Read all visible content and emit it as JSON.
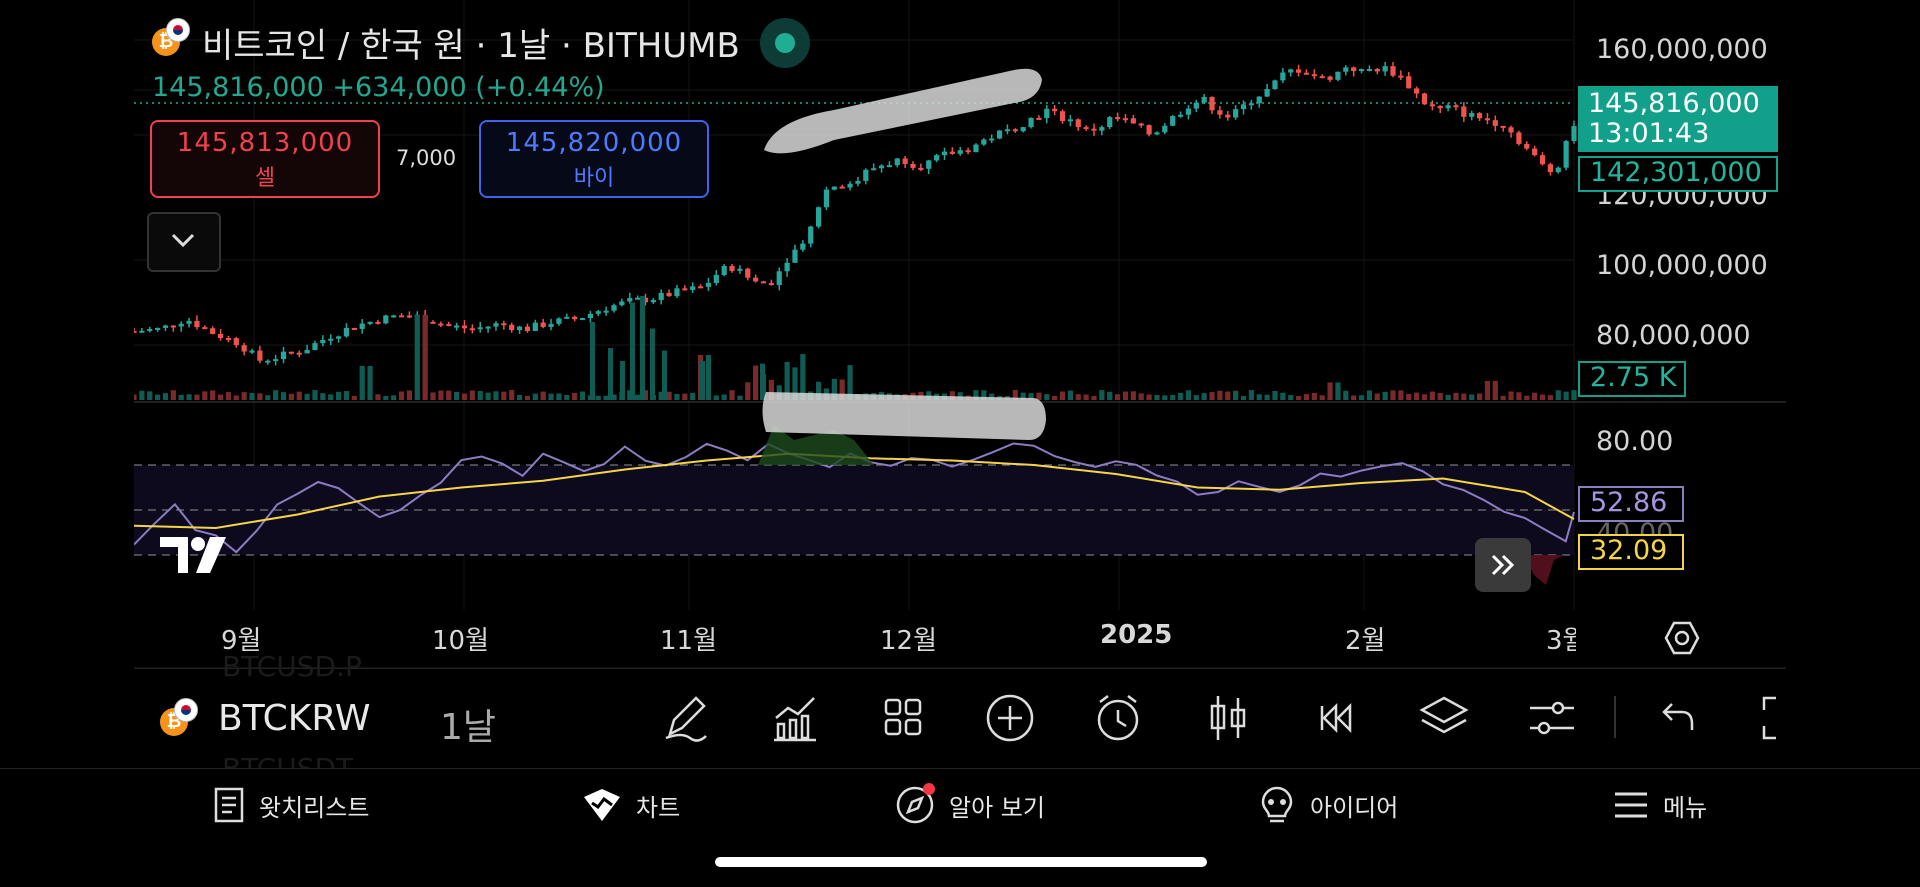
{
  "header": {
    "title": "비트코인 / 한국 원 · 1날 · BITHUMB",
    "price_line": "145,816,000 +634,000 (+0.44%)",
    "coin_icon_symbol": "₿"
  },
  "trade": {
    "sell_price": "145,813,000",
    "sell_label": "셀",
    "buy_price": "145,820,000",
    "buy_label": "바이",
    "spread": "7,000"
  },
  "price_axis": [
    "160,000,000",
    "120,000,000",
    "100,000,000",
    "80,000,000"
  ],
  "price_tags": {
    "last_price": "145,816,000",
    "countdown": "13:01:43",
    "secondary": "142,301,000",
    "volume": "2.75 K"
  },
  "rsi": {
    "axis_top": "80.00",
    "axis_mid": "40.00",
    "value": "52.86",
    "ma_value": "32.09"
  },
  "time_axis": [
    "9월",
    "10월",
    "11월",
    "12월",
    "2025",
    "2월",
    "3월"
  ],
  "toolbar": {
    "symbol": "BTCKRW",
    "interval": "1날",
    "tools": [
      "pencil-icon",
      "indicators-icon",
      "layouts-icon",
      "add-icon",
      "alarm-icon",
      "candle-icon",
      "replay-icon",
      "layers-icon",
      "settings-sliders-icon",
      "undo-icon"
    ]
  },
  "ghost": {
    "line1": "BTCUSD.P",
    "line2": "BTCUSDT"
  },
  "nav": [
    {
      "label": "왓치리스트",
      "icon": "watchlist-icon"
    },
    {
      "label": "차트",
      "icon": "chart-icon"
    },
    {
      "label": "알아 보기",
      "icon": "explore-icon"
    },
    {
      "label": "아이디어",
      "icon": "ideas-icon"
    },
    {
      "label": "메뉴",
      "icon": "menu-icon"
    }
  ],
  "colors": {
    "up": "#26a69a",
    "down": "#ef5350",
    "rsi": "#8e7cc3",
    "rsi_ma": "#f5d547",
    "accent": "#1fae94"
  },
  "chart_data": {
    "type": "candlestick",
    "title": "비트코인 / 한국 원 · 1날 · BITHUMB",
    "price_range": [
      62000000,
      170000000
    ],
    "close_path": [
      [
        0,
        82.5
      ],
      [
        10,
        83
      ],
      [
        20,
        86
      ],
      [
        30,
        82
      ],
      [
        40,
        79
      ],
      [
        48,
        74
      ],
      [
        55,
        75
      ],
      [
        65,
        77
      ],
      [
        75,
        81
      ],
      [
        85,
        84
      ],
      [
        95,
        86
      ],
      [
        102,
        87
      ],
      [
        110,
        86.5
      ],
      [
        120,
        84
      ],
      [
        130,
        83
      ],
      [
        140,
        84.5
      ],
      [
        150,
        83
      ],
      [
        160,
        85
      ],
      [
        170,
        86
      ],
      [
        180,
        89
      ],
      [
        190,
        91
      ],
      [
        200,
        92
      ],
      [
        210,
        94
      ],
      [
        218,
        95
      ],
      [
        225,
        100
      ],
      [
        230,
        101
      ],
      [
        235,
        98
      ],
      [
        240,
        96
      ],
      [
        245,
        97
      ],
      [
        250,
        103
      ],
      [
        255,
        107
      ],
      [
        260,
        113
      ],
      [
        262,
        118
      ],
      [
        265,
        123
      ],
      [
        270,
        125
      ],
      [
        275,
        124
      ],
      [
        280,
        128
      ],
      [
        285,
        130
      ],
      [
        290,
        131
      ],
      [
        295,
        132
      ],
      [
        300,
        130
      ],
      [
        305,
        131
      ],
      [
        310,
        133
      ],
      [
        315,
        134
      ],
      [
        320,
        135
      ],
      [
        325,
        137
      ],
      [
        330,
        139
      ],
      [
        335,
        140
      ],
      [
        340,
        142
      ],
      [
        345,
        144
      ],
      [
        350,
        146
      ],
      [
        355,
        144
      ],
      [
        360,
        143
      ],
      [
        365,
        140
      ],
      [
        370,
        141
      ],
      [
        375,
        144
      ],
      [
        380,
        143
      ],
      [
        385,
        141
      ],
      [
        390,
        139
      ],
      [
        395,
        142
      ],
      [
        400,
        145
      ],
      [
        405,
        148
      ],
      [
        410,
        149
      ],
      [
        415,
        146
      ],
      [
        420,
        144
      ],
      [
        425,
        147
      ],
      [
        430,
        150
      ],
      [
        435,
        152
      ],
      [
        440,
        156
      ],
      [
        445,
        158
      ],
      [
        450,
        157
      ],
      [
        455,
        155
      ],
      [
        460,
        156
      ],
      [
        465,
        159
      ],
      [
        470,
        157
      ],
      [
        475,
        158
      ],
      [
        480,
        158
      ],
      [
        485,
        156
      ],
      [
        490,
        152
      ],
      [
        495,
        148
      ],
      [
        500,
        146
      ],
      [
        505,
        147
      ],
      [
        510,
        145
      ],
      [
        515,
        144
      ],
      [
        520,
        143
      ],
      [
        525,
        142
      ],
      [
        530,
        138
      ],
      [
        535,
        134
      ],
      [
        540,
        130
      ],
      [
        544,
        128
      ],
      [
        547,
        132
      ],
      [
        550,
        140
      ],
      [
        552,
        142
      ]
    ],
    "volume_spikes": [
      [
        90,
        6.8
      ],
      [
        110,
        17
      ],
      [
        220,
        9
      ],
      [
        244,
        11
      ],
      [
        253,
        16
      ],
      [
        262,
        14
      ],
      [
        270,
        7
      ],
      [
        460,
        3.5
      ],
      [
        520,
        3.8
      ]
    ],
    "rsi_path": [
      [
        0,
        35
      ],
      [
        5,
        45
      ],
      [
        10,
        52
      ],
      [
        15,
        40
      ],
      [
        20,
        38
      ],
      [
        25,
        32
      ],
      [
        30,
        40
      ],
      [
        35,
        52
      ],
      [
        40,
        58
      ],
      [
        45,
        62
      ],
      [
        50,
        60
      ],
      [
        55,
        54
      ],
      [
        60,
        48
      ],
      [
        65,
        50
      ],
      [
        70,
        56
      ],
      [
        75,
        62
      ],
      [
        80,
        72
      ],
      [
        85,
        74
      ],
      [
        90,
        70
      ],
      [
        95,
        66
      ],
      [
        100,
        74
      ],
      [
        105,
        72
      ],
      [
        110,
        66
      ],
      [
        115,
        70
      ],
      [
        120,
        78
      ],
      [
        125,
        72
      ],
      [
        130,
        70
      ],
      [
        135,
        74
      ],
      [
        140,
        80
      ],
      [
        145,
        76
      ],
      [
        150,
        73
      ],
      [
        155,
        78
      ],
      [
        160,
        74
      ],
      [
        165,
        72
      ],
      [
        170,
        70
      ],
      [
        175,
        74
      ],
      [
        180,
        72
      ],
      [
        185,
        70
      ],
      [
        190,
        74
      ],
      [
        195,
        72
      ],
      [
        200,
        70
      ],
      [
        205,
        73
      ],
      [
        210,
        76
      ],
      [
        215,
        80
      ],
      [
        220,
        78
      ],
      [
        225,
        75
      ],
      [
        230,
        72
      ],
      [
        235,
        70
      ],
      [
        240,
        72
      ],
      [
        245,
        70
      ],
      [
        250,
        66
      ],
      [
        255,
        62
      ],
      [
        260,
        56
      ],
      [
        265,
        58
      ],
      [
        270,
        62
      ],
      [
        275,
        60
      ],
      [
        280,
        58
      ],
      [
        285,
        62
      ],
      [
        290,
        66
      ],
      [
        295,
        64
      ],
      [
        300,
        68
      ],
      [
        305,
        70
      ],
      [
        310,
        72
      ],
      [
        315,
        66
      ],
      [
        320,
        62
      ],
      [
        325,
        58
      ],
      [
        330,
        54
      ],
      [
        335,
        50
      ],
      [
        340,
        46
      ],
      [
        345,
        40
      ],
      [
        350,
        36
      ],
      [
        352,
        50
      ]
    ],
    "rsi_ma_path": [
      [
        0,
        43
      ],
      [
        20,
        42
      ],
      [
        40,
        48
      ],
      [
        60,
        56
      ],
      [
        80,
        60
      ],
      [
        100,
        63
      ],
      [
        120,
        68
      ],
      [
        140,
        72
      ],
      [
        160,
        75
      ],
      [
        180,
        73
      ],
      [
        200,
        72
      ],
      [
        220,
        70
      ],
      [
        240,
        66
      ],
      [
        260,
        60
      ],
      [
        280,
        59
      ],
      [
        300,
        62
      ],
      [
        320,
        64
      ],
      [
        340,
        58
      ],
      [
        352,
        46
      ]
    ],
    "ylabel": "",
    "xlabel": ""
  }
}
